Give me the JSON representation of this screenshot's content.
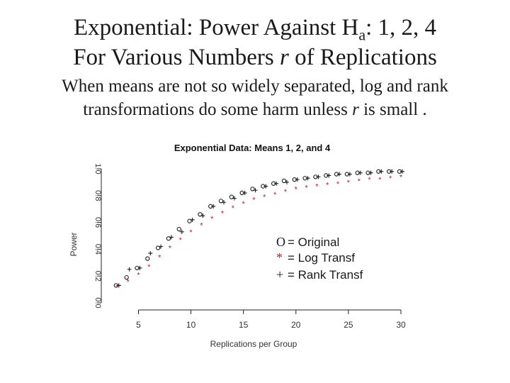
{
  "slide": {
    "title_line1_prefix": "Exponential: Power Against H",
    "title_line1_sub": "a",
    "title_line1_suffix": ": 1, 2, 4",
    "title_line2_prefix": "For Various Numbers ",
    "title_line2_var": "r",
    "title_line2_suffix": " of Replications",
    "subtitle_line1": "When means are not so widely separated, log and rank",
    "subtitle_line2_prefix": "transformations do some harm unless ",
    "subtitle_line2_var": "r",
    "subtitle_line2_suffix": " is small ."
  },
  "chart_data": {
    "type": "scatter",
    "title": "Exponential Data: Means 1, 2, and 4",
    "xlabel": "Replications per Group",
    "ylabel": "Power",
    "xlim": [
      2,
      30
    ],
    "ylim": [
      0,
      1
    ],
    "xticks": [
      5,
      10,
      15,
      20,
      25,
      30
    ],
    "yticks": [
      0.0,
      0.2,
      0.4,
      0.6,
      0.8,
      1.0
    ],
    "ytick_labels": [
      "0.0",
      "0.2",
      "0.4",
      "0.6",
      "0.8",
      "1.0"
    ],
    "grid": false,
    "legend_position": "right",
    "legend": [
      {
        "symbol": "O",
        "label": "= Original",
        "color": "#1a1a1a"
      },
      {
        "symbol": "*",
        "label": "= Log  Transf",
        "color": "#c0202a"
      },
      {
        "symbol": "+",
        "label": "= Rank Transf",
        "color": "#1a1a1a"
      }
    ],
    "series": [
      {
        "marker": "o",
        "color": "#1a1a1a",
        "x": [
          3,
          4,
          5,
          6,
          7,
          8,
          9,
          10,
          11,
          12,
          13,
          14,
          15,
          16,
          17,
          18,
          19,
          20,
          21,
          22,
          23,
          24,
          25,
          26,
          27,
          28,
          29,
          30
        ],
        "values": [
          0.13,
          0.19,
          0.26,
          0.33,
          0.41,
          0.48,
          0.55,
          0.61,
          0.66,
          0.72,
          0.76,
          0.79,
          0.82,
          0.85,
          0.87,
          0.89,
          0.91,
          0.92,
          0.93,
          0.94,
          0.95,
          0.96,
          0.96,
          0.97,
          0.97,
          0.98,
          0.98,
          0.98
        ]
      },
      {
        "marker": "*",
        "color": "#c0202a",
        "x": [
          3,
          4,
          5,
          6,
          7,
          8,
          9,
          10,
          11,
          12,
          13,
          14,
          15,
          16,
          17,
          18,
          19,
          20,
          21,
          22,
          23,
          24,
          25,
          26,
          27,
          28,
          29,
          30
        ],
        "values": [
          0.12,
          0.16,
          0.21,
          0.27,
          0.34,
          0.41,
          0.47,
          0.53,
          0.58,
          0.63,
          0.67,
          0.71,
          0.74,
          0.77,
          0.79,
          0.81,
          0.83,
          0.85,
          0.86,
          0.87,
          0.88,
          0.89,
          0.9,
          0.91,
          0.92,
          0.92,
          0.93,
          0.94
        ]
      },
      {
        "marker": "+",
        "color": "#1a1a1a",
        "x": [
          3,
          4,
          5,
          6,
          7,
          8,
          9,
          10,
          11,
          12,
          13,
          14,
          15,
          16,
          17,
          18,
          19,
          20,
          21,
          22,
          23,
          24,
          25,
          26,
          27,
          28,
          29,
          30
        ],
        "values": [
          0.13,
          0.25,
          0.26,
          0.37,
          0.42,
          0.49,
          0.53,
          0.62,
          0.65,
          0.72,
          0.75,
          0.78,
          0.82,
          0.84,
          0.87,
          0.89,
          0.9,
          0.92,
          0.93,
          0.94,
          0.95,
          0.96,
          0.96,
          0.97,
          0.97,
          0.98,
          0.98,
          0.98
        ]
      }
    ]
  }
}
